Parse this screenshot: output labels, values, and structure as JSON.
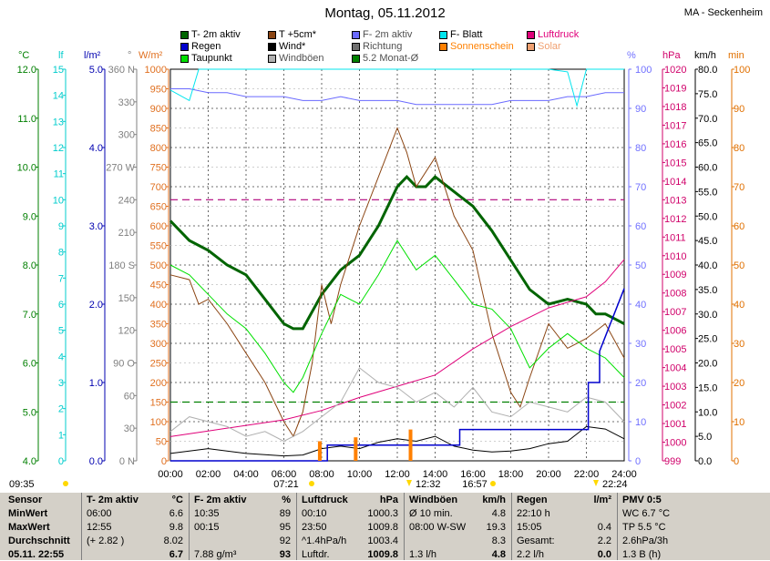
{
  "title": "Montag, 05.11.2012",
  "station": "MA - Seckenheim",
  "legend": [
    {
      "label": "T- 2m aktiv",
      "color": "#006400"
    },
    {
      "label": "T +5cm*",
      "color": "#8b4513"
    },
    {
      "label": "F- 2m aktiv",
      "color": "#6a6aff"
    },
    {
      "label": "F- Blatt",
      "color": "#00e5ee"
    },
    {
      "label": "Luftdruck",
      "color": "#e0007a"
    },
    {
      "label": "Regen",
      "color": "#0000cd"
    },
    {
      "label": "Wind*",
      "color": "#000000"
    },
    {
      "label": "Richtung",
      "color": "#707070"
    },
    {
      "label": "Sonnenschein",
      "color": "#ff8000"
    },
    {
      "label": "Solar",
      "color": "#f0a070"
    },
    {
      "label": "Taupunkt",
      "color": "#00e000"
    },
    {
      "label": "Windböen",
      "color": "#b0b0b0"
    },
    {
      "label": "5.2 Monat-Ø",
      "color": "#008000"
    }
  ],
  "axis_heads": {
    "tempC": "°C",
    "lf": "lf",
    "rain": "l/m²",
    "dir": "°",
    "solar": "W/m²",
    "hum": "%",
    "press": "hPa",
    "wind": "km/h",
    "sun": "min"
  },
  "axes": {
    "tempC": [
      "4.0",
      "5.0",
      "6.0",
      "7.0",
      "8.0",
      "9.0",
      "10.0",
      "11.0",
      "12.0"
    ],
    "lf": [
      "0",
      "1",
      "2",
      "3",
      "4",
      "5",
      "6",
      "7",
      "8",
      "9",
      "10",
      "11",
      "12",
      "13",
      "14",
      "15"
    ],
    "rain": [
      "0.0",
      "1.0",
      "2.0",
      "3.0",
      "4.0",
      "5.0"
    ],
    "dir": [
      "0 N",
      "30",
      "60",
      "90 O",
      "120",
      "150",
      "180 S",
      "210",
      "240",
      "270 W",
      "300",
      "330",
      "360 N"
    ],
    "solar": [
      "0",
      "50",
      "100",
      "150",
      "200",
      "250",
      "300",
      "350",
      "400",
      "450",
      "500",
      "550",
      "600",
      "650",
      "700",
      "750",
      "800",
      "850",
      "900",
      "950",
      "1000"
    ],
    "hum": [
      "0",
      "10",
      "20",
      "30",
      "40",
      "50",
      "60",
      "70",
      "80",
      "90",
      "100"
    ],
    "press": [
      "999",
      "1000",
      "1001",
      "1002",
      "1003",
      "1004",
      "1005",
      "1006",
      "1007",
      "1008",
      "1009",
      "1010",
      "1011",
      "1012",
      "1013",
      "1014",
      "1015",
      "1016",
      "1017",
      "1018",
      "1019",
      "1020"
    ],
    "wind": [
      "0.0",
      "5.0",
      "10.0",
      "15.0",
      "20.0",
      "25.0",
      "30.0",
      "35.0",
      "40.0",
      "45.0",
      "50.0",
      "55.0",
      "60.0",
      "65.0",
      "70.0",
      "75.0",
      "80.0"
    ],
    "sun": [
      "0",
      "10",
      "20",
      "30",
      "40",
      "50",
      "60",
      "70",
      "80",
      "90",
      "100"
    ]
  },
  "time_labels": [
    "00:00",
    "02:00",
    "04:00",
    "06:00",
    "08:00",
    "10:00",
    "12:00",
    "14:00",
    "16:00",
    "18:00",
    "20:00",
    "22:00",
    "24:00"
  ],
  "markers": {
    "current": "09:35",
    "sunrise": "07:21",
    "noon": "12:32",
    "sunset": "16:57",
    "moon": "22:24"
  },
  "chart_data": {
    "type": "line",
    "x_unit": "hour",
    "xlim": [
      0,
      24
    ],
    "series": [
      {
        "name": "T- 2m aktiv",
        "unit": "°C",
        "color": "#006400",
        "x": [
          0,
          1,
          2,
          3,
          4,
          5,
          6,
          6.5,
          7,
          8,
          9,
          10,
          11,
          12,
          12.5,
          13,
          13.5,
          14,
          15,
          16,
          17,
          18,
          19,
          20,
          21,
          22,
          22.5,
          23,
          23.5,
          24
        ],
        "values": [
          8.9,
          8.5,
          8.3,
          8.0,
          7.8,
          7.3,
          6.8,
          6.7,
          6.7,
          7.4,
          7.9,
          8.2,
          8.8,
          9.6,
          9.8,
          9.6,
          9.6,
          9.8,
          9.5,
          9.2,
          8.7,
          8.1,
          7.5,
          7.2,
          7.3,
          7.2,
          7.0,
          7.0,
          6.9,
          6.8
        ]
      },
      {
        "name": "T +5cm*",
        "unit": "°C",
        "color": "#8b4513",
        "x": [
          0,
          1,
          1.5,
          2,
          3,
          4,
          5,
          6,
          6.5,
          7,
          7.5,
          8,
          8.5,
          9,
          10,
          11,
          12,
          12.5,
          13,
          14,
          15,
          16,
          17,
          18,
          18.5,
          19,
          20,
          21,
          22,
          23,
          24
        ],
        "values": [
          7.8,
          7.7,
          7.2,
          7.3,
          6.8,
          6.2,
          5.6,
          4.8,
          4.5,
          5.0,
          6.0,
          7.6,
          6.8,
          7.6,
          8.8,
          9.8,
          10.8,
          10.3,
          9.6,
          10.2,
          9.0,
          8.3,
          6.6,
          5.4,
          5.1,
          5.7,
          6.8,
          6.3,
          6.5,
          6.8,
          6.1
        ]
      },
      {
        "name": "Taupunkt",
        "unit": "°C",
        "color": "#00e000",
        "x": [
          0,
          1,
          2,
          3,
          4,
          5,
          6,
          6.5,
          7,
          8,
          9,
          10,
          11,
          12,
          13,
          14,
          15,
          16,
          17,
          18,
          19,
          20,
          21,
          22,
          23,
          24
        ],
        "values": [
          8.0,
          7.8,
          7.4,
          7.0,
          6.7,
          6.2,
          5.6,
          5.4,
          5.7,
          6.6,
          7.4,
          7.2,
          7.8,
          8.5,
          7.9,
          8.2,
          7.7,
          7.2,
          7.1,
          6.7,
          5.9,
          6.3,
          6.6,
          6.3,
          6.1,
          5.7
        ]
      },
      {
        "name": "F- 2m aktiv",
        "unit": "%",
        "color": "#6a6aff",
        "x": [
          0,
          1,
          2,
          3,
          4,
          5,
          6,
          7,
          8,
          9,
          10,
          11,
          12,
          13,
          14,
          15,
          16,
          17,
          18,
          19,
          20,
          21,
          22,
          23,
          24
        ],
        "values": [
          95,
          95,
          94,
          94,
          93,
          93,
          93,
          92,
          92,
          93,
          92,
          92,
          92,
          91,
          91,
          91,
          91,
          91,
          92,
          92,
          92,
          93,
          93,
          94,
          94
        ]
      },
      {
        "name": "Luftdruck",
        "unit": "hPa",
        "color": "#e0007a",
        "x": [
          0,
          2,
          4,
          6,
          8,
          10,
          12,
          14,
          16,
          18,
          20,
          22,
          23,
          24
        ],
        "values": [
          1000.3,
          1000.6,
          1000.9,
          1001.2,
          1001.7,
          1002.4,
          1003.0,
          1003.6,
          1005.0,
          1006.2,
          1007.2,
          1007.8,
          1008.6,
          1009.8
        ]
      },
      {
        "name": "Wind*",
        "unit": "km/h",
        "color": "#000000",
        "x": [
          0,
          2,
          4,
          6,
          7,
          8,
          9,
          10,
          11,
          12,
          13,
          14,
          15,
          16,
          17,
          18,
          19,
          20,
          21,
          22,
          23,
          24
        ],
        "values": [
          1.5,
          2.5,
          1.5,
          1.0,
          1.2,
          2.5,
          3.0,
          2.5,
          3.8,
          4.5,
          4.0,
          5.0,
          3.0,
          2.2,
          1.8,
          2.0,
          2.5,
          3.5,
          4.0,
          7.0,
          6.5,
          4.5
        ]
      },
      {
        "name": "Windböen",
        "unit": "km/h",
        "color": "#b0b0b0",
        "x": [
          0,
          1,
          2,
          3,
          4,
          5,
          6,
          7,
          8,
          9,
          10,
          11,
          12,
          13,
          14,
          15,
          16,
          17,
          18,
          19,
          20,
          21,
          22,
          23,
          24
        ],
        "values": [
          6,
          9,
          8,
          7,
          5,
          6,
          4,
          6,
          9,
          12,
          19,
          16,
          15,
          12,
          14,
          11,
          15,
          10,
          9,
          12,
          11,
          10,
          13,
          12,
          8
        ]
      },
      {
        "name": "Regen",
        "unit": "l/m²",
        "color": "#0000cd",
        "x": [
          0,
          8.3,
          8.3,
          15.3,
          15.3,
          22.1,
          22.1,
          22.7,
          22.7,
          24
        ],
        "values": [
          0.0,
          0.0,
          0.2,
          0.2,
          0.4,
          0.4,
          1.0,
          1.0,
          1.4,
          2.2
        ]
      },
      {
        "name": "F- Blatt",
        "unit": "lf",
        "color": "#00e5ee",
        "x": [
          0,
          1,
          1.5,
          2,
          3,
          5,
          7,
          7.5,
          8,
          10,
          11,
          12,
          13,
          14,
          15,
          16,
          17,
          18,
          19,
          20,
          21,
          21.5,
          22,
          23,
          24
        ],
        "values": [
          14.2,
          13.8,
          15,
          15,
          15,
          15,
          15,
          15,
          15,
          15,
          15,
          15,
          15,
          15,
          15,
          15,
          15,
          15,
          15,
          15,
          14.9,
          13.6,
          15,
          15,
          15
        ]
      }
    ],
    "sunshine_min_bars": [
      {
        "x": 7.9,
        "v": 5
      },
      {
        "x": 9.8,
        "v": 6
      },
      {
        "x": 12.7,
        "v": 8
      }
    ],
    "month_avg_tempC": 5.2,
    "pressure_ref_hPa": 1013
  },
  "panel": {
    "col1": {
      "rows": [
        "Sensor",
        "MinWert",
        "MaxWert",
        "Durchschnitt",
        "05.11. 22:55"
      ]
    },
    "col2": {
      "head": "T- 2m aktiv",
      "unit": "°C",
      "rows": [
        [
          "06:00",
          "6.6"
        ],
        [
          "12:55",
          "9.8"
        ],
        [
          "(+ 2.82 )",
          "8.02"
        ],
        [
          "",
          "6.7"
        ]
      ]
    },
    "col3": {
      "head": "F- 2m aktiv",
      "unit": "%",
      "rows": [
        [
          "10:35",
          "89"
        ],
        [
          "00:15",
          "95"
        ],
        [
          "",
          "92"
        ],
        [
          "7.88 g/m³",
          "93"
        ]
      ]
    },
    "col4": {
      "head": "Luftdruck",
      "unit": "hPa",
      "rows": [
        [
          "00:10",
          "1000.3"
        ],
        [
          "23:50",
          "1009.8"
        ],
        [
          "^1.4hPa/h",
          "1003.4"
        ],
        [
          "Luftdr.",
          "1009.8"
        ]
      ]
    },
    "col5": {
      "head": "Windböen",
      "unit": "km/h",
      "rows": [
        [
          "Ø 10 min.",
          "4.8"
        ],
        [
          "08:00  W-SW",
          "19.3"
        ],
        [
          "",
          "8.3"
        ],
        [
          "1.3 l/h",
          "4.8"
        ]
      ]
    },
    "col6": {
      "head": "Regen",
      "unit": "l/m²",
      "rows": [
        [
          "22:10 h",
          ""
        ],
        [
          "15:05",
          "0.4"
        ],
        [
          "Gesamt:",
          "2.2"
        ],
        [
          "2.2 l/h",
          "0.0"
        ]
      ]
    },
    "col7": {
      "head": "PMV 0:5",
      "rows": [
        "WC 6.7 °C",
        "TP 5.5 °C",
        "2.6hPa/3h",
        "1.3 B (h)"
      ]
    }
  }
}
